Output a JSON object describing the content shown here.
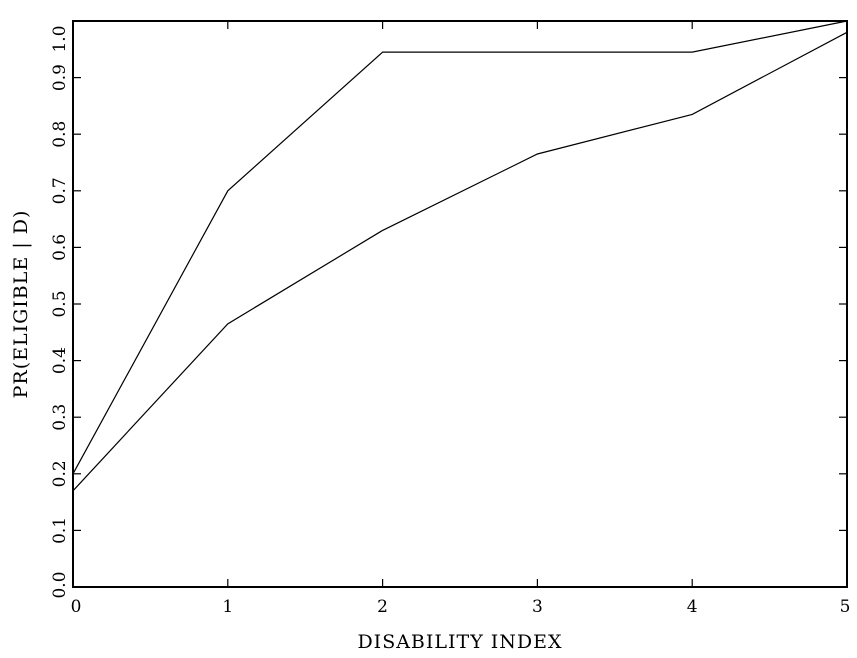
{
  "chart_data": {
    "type": "line",
    "title": "",
    "xlabel": "DISABILITY INDEX",
    "ylabel": "PR(ELIGIBLE | D)",
    "xlim": [
      0,
      5
    ],
    "ylim": [
      0.0,
      1.0
    ],
    "x_ticks": [
      "0",
      "1",
      "2",
      "3",
      "4",
      "5"
    ],
    "y_ticks": [
      "0.0",
      "0.1",
      "0.2",
      "0.3",
      "0.4",
      "0.5",
      "0.6",
      "0.7",
      "0.8",
      "0.9",
      "1.0"
    ],
    "grid": false,
    "x": [
      0,
      1,
      2,
      3,
      4,
      5
    ],
    "series": [
      {
        "values": [
          0.2,
          0.7,
          0.945,
          0.945,
          0.945,
          1.0
        ]
      },
      {
        "values": [
          0.17,
          0.465,
          0.63,
          0.765,
          0.835,
          0.98
        ]
      }
    ],
    "colors": {
      "line": "#000000",
      "background": "#ffffff"
    }
  }
}
